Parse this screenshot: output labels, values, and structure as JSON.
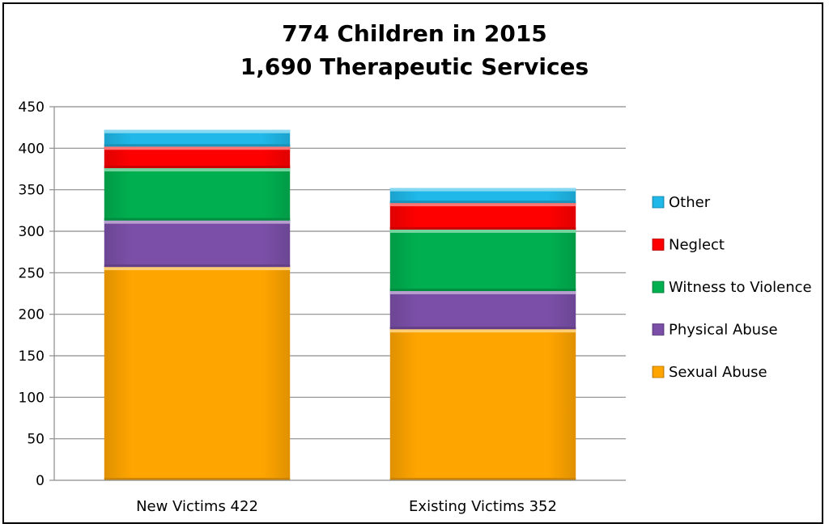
{
  "chart_data": {
    "type": "bar",
    "stacked": true,
    "title": "774 Children in 2015",
    "subtitle": "1,690 Therapeutic Services",
    "categories": [
      "New Victims 422",
      "Existing Victims 352"
    ],
    "series": [
      {
        "name": "Sexual Abuse",
        "values": [
          257,
          182
        ],
        "color": "#FFA500"
      },
      {
        "name": "Physical Abuse",
        "values": [
          56,
          46
        ],
        "color": "#7B4FA8"
      },
      {
        "name": "Witness to Violence",
        "values": [
          63,
          74
        ],
        "color": "#00B050"
      },
      {
        "name": "Neglect",
        "values": [
          26,
          32
        ],
        "color": "#FF0000"
      },
      {
        "name": "Other",
        "values": [
          20,
          18
        ],
        "color": "#1FB8E8"
      }
    ],
    "ylim": [
      0,
      450
    ],
    "yticks": [
      0,
      50,
      100,
      150,
      200,
      250,
      300,
      350,
      400,
      450
    ],
    "grid": true,
    "legend_position": "right"
  }
}
